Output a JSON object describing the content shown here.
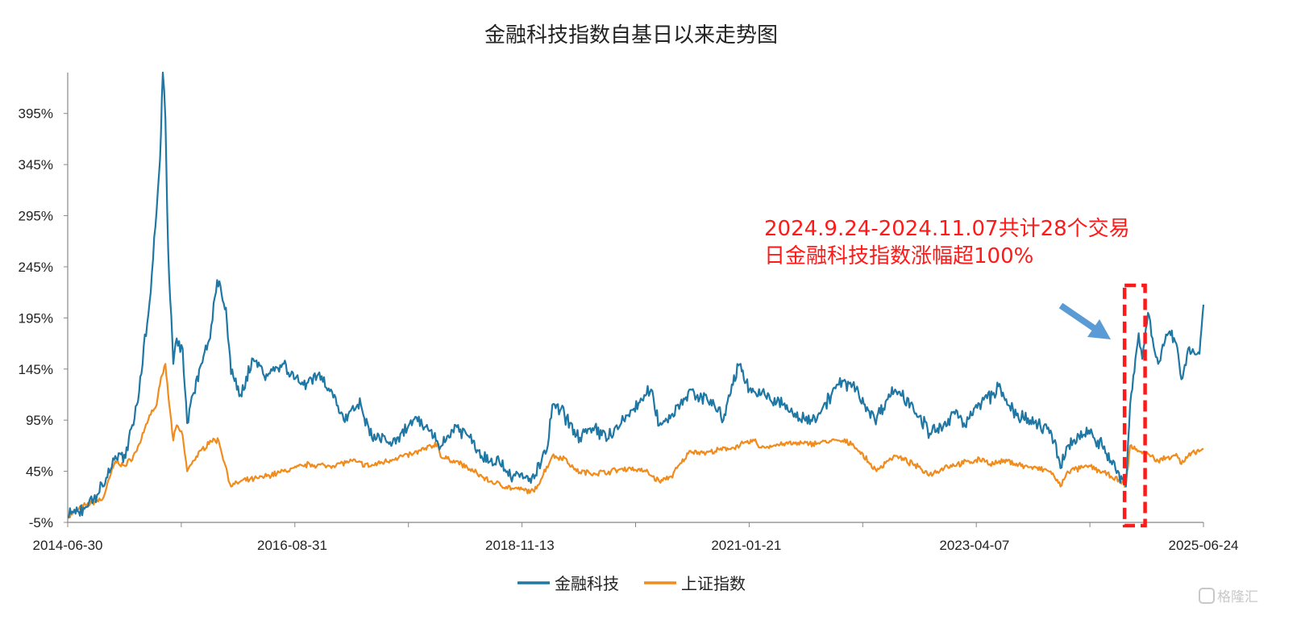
{
  "chart_data": {
    "type": "line",
    "title": "金融科技指数自基日以来走势图",
    "yticks": [
      "-5%",
      "45%",
      "95%",
      "145%",
      "195%",
      "245%",
      "295%",
      "345%",
      "395%"
    ],
    "ylim": [
      -5,
      435
    ],
    "xticks": [
      "2014-06-30",
      "2016-08-31",
      "2018-11-13",
      "2021-01-21",
      "2023-04-07",
      "2025-06-24"
    ],
    "xlim": [
      "2014-06-30",
      "2025-06-24"
    ],
    "grid": false,
    "legend_position": "bottom",
    "series": [
      {
        "name": "金融科技",
        "color": "#1f77a4",
        "points": [
          [
            "2014-06-30",
            0
          ],
          [
            "2014-09-01",
            10
          ],
          [
            "2014-11-01",
            30
          ],
          [
            "2014-12-15",
            60
          ],
          [
            "2015-01-20",
            58
          ],
          [
            "2015-03-01",
            110
          ],
          [
            "2015-04-15",
            210
          ],
          [
            "2015-05-10",
            300
          ],
          [
            "2015-05-22",
            350
          ],
          [
            "2015-06-01",
            435
          ],
          [
            "2015-06-10",
            390
          ],
          [
            "2015-06-20",
            260
          ],
          [
            "2015-07-08",
            150
          ],
          [
            "2015-07-20",
            175
          ],
          [
            "2015-08-10",
            165
          ],
          [
            "2015-08-26",
            92
          ],
          [
            "2015-09-15",
            120
          ],
          [
            "2015-10-15",
            150
          ],
          [
            "2015-11-15",
            175
          ],
          [
            "2015-12-10",
            232
          ],
          [
            "2016-01-10",
            205
          ],
          [
            "2016-01-28",
            140
          ],
          [
            "2016-03-01",
            120
          ],
          [
            "2016-04-15",
            155
          ],
          [
            "2016-06-01",
            140
          ],
          [
            "2016-08-01",
            150
          ],
          [
            "2016-10-01",
            130
          ],
          [
            "2016-12-01",
            140
          ],
          [
            "2017-01-15",
            125
          ],
          [
            "2017-03-01",
            95
          ],
          [
            "2017-05-01",
            110
          ],
          [
            "2017-06-01",
            80
          ],
          [
            "2017-09-01",
            72
          ],
          [
            "2017-11-01",
            95
          ],
          [
            "2018-01-01",
            85
          ],
          [
            "2018-02-10",
            70
          ],
          [
            "2018-04-01",
            90
          ],
          [
            "2018-06-01",
            75
          ],
          [
            "2018-07-01",
            60
          ],
          [
            "2018-09-01",
            55
          ],
          [
            "2018-10-20",
            40
          ],
          [
            "2019-01-03",
            38
          ],
          [
            "2019-02-20",
            70
          ],
          [
            "2019-03-08",
            110
          ],
          [
            "2019-04-20",
            100
          ],
          [
            "2019-06-01",
            80
          ],
          [
            "2019-08-01",
            85
          ],
          [
            "2019-10-01",
            80
          ],
          [
            "2019-12-01",
            100
          ],
          [
            "2020-02-20",
            125
          ],
          [
            "2020-03-20",
            90
          ],
          [
            "2020-05-01",
            100
          ],
          [
            "2020-07-08",
            125
          ],
          [
            "2020-07-25",
            115
          ],
          [
            "2020-09-01",
            120
          ],
          [
            "2020-11-01",
            95
          ],
          [
            "2020-12-01",
            130
          ],
          [
            "2021-01-01",
            150
          ],
          [
            "2021-02-01",
            125
          ],
          [
            "2021-03-15",
            120
          ],
          [
            "2021-06-01",
            110
          ],
          [
            "2021-08-01",
            95
          ],
          [
            "2021-10-01",
            100
          ],
          [
            "2021-12-10",
            130
          ],
          [
            "2022-02-01",
            130
          ],
          [
            "2022-04-20",
            95
          ],
          [
            "2022-06-01",
            115
          ],
          [
            "2022-07-01",
            125
          ],
          [
            "2022-09-01",
            110
          ],
          [
            "2022-10-31",
            82
          ],
          [
            "2023-01-01",
            90
          ],
          [
            "2023-02-01",
            105
          ],
          [
            "2023-03-01",
            92
          ],
          [
            "2023-05-10",
            115
          ],
          [
            "2023-06-10",
            120
          ],
          [
            "2023-07-01",
            128
          ],
          [
            "2023-08-01",
            110
          ],
          [
            "2023-10-01",
            95
          ],
          [
            "2024-01-01",
            85
          ],
          [
            "2024-02-05",
            48
          ],
          [
            "2024-03-01",
            70
          ],
          [
            "2024-05-15",
            85
          ],
          [
            "2024-07-01",
            70
          ],
          [
            "2024-08-01",
            55
          ],
          [
            "2024-09-23",
            30
          ],
          [
            "2024-10-08",
            110
          ],
          [
            "2024-11-07",
            180
          ],
          [
            "2024-11-20",
            155
          ],
          [
            "2024-12-10",
            200
          ],
          [
            "2025-01-15",
            150
          ],
          [
            "2025-02-20",
            180
          ],
          [
            "2025-03-20",
            170
          ],
          [
            "2025-04-07",
            135
          ],
          [
            "2025-05-01",
            165
          ],
          [
            "2025-06-10",
            160
          ],
          [
            "2025-06-24",
            208
          ]
        ]
      },
      {
        "name": "上证指数",
        "color": "#f08c1e",
        "points": [
          [
            "2014-06-30",
            0
          ],
          [
            "2014-09-01",
            12
          ],
          [
            "2014-11-01",
            18
          ],
          [
            "2014-12-15",
            55
          ],
          [
            "2015-01-20",
            50
          ],
          [
            "2015-03-01",
            65
          ],
          [
            "2015-04-15",
            100
          ],
          [
            "2015-05-10",
            110
          ],
          [
            "2015-05-22",
            130
          ],
          [
            "2015-06-10",
            150
          ],
          [
            "2015-06-20",
            120
          ],
          [
            "2015-07-08",
            75
          ],
          [
            "2015-07-20",
            90
          ],
          [
            "2015-08-10",
            80
          ],
          [
            "2015-08-26",
            45
          ],
          [
            "2015-09-15",
            55
          ],
          [
            "2015-11-15",
            75
          ],
          [
            "2015-12-15",
            75
          ],
          [
            "2016-01-28",
            30
          ],
          [
            "2016-03-01",
            35
          ],
          [
            "2016-05-01",
            38
          ],
          [
            "2016-08-01",
            45
          ],
          [
            "2016-11-01",
            52
          ],
          [
            "2017-01-01",
            50
          ],
          [
            "2017-04-01",
            55
          ],
          [
            "2017-06-01",
            50
          ],
          [
            "2017-09-01",
            58
          ],
          [
            "2017-11-01",
            62
          ],
          [
            "2018-01-26",
            72
          ],
          [
            "2018-02-10",
            58
          ],
          [
            "2018-04-01",
            55
          ],
          [
            "2018-06-01",
            45
          ],
          [
            "2018-08-01",
            35
          ],
          [
            "2018-10-20",
            28
          ],
          [
            "2019-01-03",
            25
          ],
          [
            "2019-03-08",
            60
          ],
          [
            "2019-04-20",
            58
          ],
          [
            "2019-06-01",
            45
          ],
          [
            "2019-08-01",
            43
          ],
          [
            "2019-10-01",
            45
          ],
          [
            "2019-12-01",
            48
          ],
          [
            "2020-02-01",
            45
          ],
          [
            "2020-03-20",
            35
          ],
          [
            "2020-05-01",
            40
          ],
          [
            "2020-07-08",
            65
          ],
          [
            "2020-09-01",
            63
          ],
          [
            "2020-12-01",
            68
          ],
          [
            "2021-02-18",
            75
          ],
          [
            "2021-03-15",
            68
          ],
          [
            "2021-06-01",
            72
          ],
          [
            "2021-09-01",
            72
          ],
          [
            "2021-12-10",
            75
          ],
          [
            "2022-02-01",
            72
          ],
          [
            "2022-04-26",
            45
          ],
          [
            "2022-06-01",
            55
          ],
          [
            "2022-07-01",
            60
          ],
          [
            "2022-09-01",
            52
          ],
          [
            "2022-10-31",
            42
          ],
          [
            "2023-01-01",
            50
          ],
          [
            "2023-05-10",
            57
          ],
          [
            "2023-06-01",
            52
          ],
          [
            "2023-08-01",
            55
          ],
          [
            "2023-10-01",
            50
          ],
          [
            "2024-01-01",
            45
          ],
          [
            "2024-02-05",
            30
          ],
          [
            "2024-03-01",
            45
          ],
          [
            "2024-05-20",
            50
          ],
          [
            "2024-08-01",
            40
          ],
          [
            "2024-09-23",
            32
          ],
          [
            "2024-10-08",
            70
          ],
          [
            "2024-11-07",
            65
          ],
          [
            "2024-12-10",
            62
          ],
          [
            "2025-01-15",
            55
          ],
          [
            "2025-03-20",
            62
          ],
          [
            "2025-04-07",
            52
          ],
          [
            "2025-05-01",
            60
          ],
          [
            "2025-06-24",
            67
          ]
        ]
      }
    ],
    "annotation": {
      "lines": [
        "2024.9.24-2024.11.07共计28个交易",
        "日金融科技指数涨幅超100%"
      ],
      "color": "#ff1a1a",
      "highlight_range": [
        "2024-09-24",
        "2024-11-07"
      ],
      "arrow_color": "#5b9bd5"
    }
  },
  "watermark": "格隆汇"
}
